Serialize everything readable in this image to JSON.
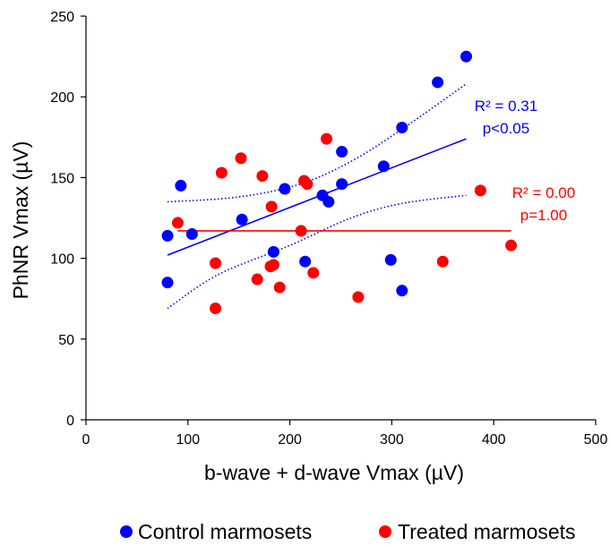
{
  "chart_data": {
    "type": "scatter",
    "xlabel": "b-wave + d-wave Vmax (µV)",
    "ylabel": "PhNR Vmax (µV)",
    "xlim": [
      0,
      500
    ],
    "ylim": [
      0,
      250
    ],
    "x_ticks": [
      "0",
      "100",
      "200",
      "300",
      "400",
      "500"
    ],
    "y_ticks": [
      "0",
      "50",
      "100",
      "150",
      "200",
      "250"
    ],
    "grid": false,
    "legend_position": "bottom",
    "series": [
      {
        "name": "Control marmosets",
        "color": "#0000ff",
        "points": [
          [
            80,
            114
          ],
          [
            80,
            85
          ],
          [
            93,
            145
          ],
          [
            104,
            115
          ],
          [
            153,
            124
          ],
          [
            184,
            104
          ],
          [
            195,
            143
          ],
          [
            215,
            98
          ],
          [
            232,
            139
          ],
          [
            238,
            135
          ],
          [
            251,
            166
          ],
          [
            251,
            146
          ],
          [
            292,
            157
          ],
          [
            299,
            99
          ],
          [
            310,
            181
          ],
          [
            310,
            80
          ],
          [
            345,
            209
          ],
          [
            373,
            225
          ]
        ],
        "fit": {
          "x_start": 80,
          "x_end": 373,
          "y_start": 102,
          "y_end": 174
        },
        "ci_upper": [
          [
            80,
            135
          ],
          [
            150,
            138
          ],
          [
            210,
            146
          ],
          [
            260,
            160
          ],
          [
            310,
            180
          ],
          [
            373,
            208
          ]
        ],
        "ci_lower": [
          [
            80,
            69
          ],
          [
            130,
            90
          ],
          [
            200,
            108
          ],
          [
            260,
            125
          ],
          [
            310,
            134
          ],
          [
            373,
            139
          ]
        ],
        "stats": [
          "R² = 0.31",
          "p<0.05"
        ]
      },
      {
        "name": "Treated marmosets",
        "color": "#ff0000",
        "points": [
          [
            90,
            122
          ],
          [
            127,
            97
          ],
          [
            127,
            69
          ],
          [
            133,
            153
          ],
          [
            152,
            162
          ],
          [
            168,
            87
          ],
          [
            173,
            151
          ],
          [
            181,
            95
          ],
          [
            182,
            132
          ],
          [
            184,
            96
          ],
          [
            190,
            82
          ],
          [
            211,
            117
          ],
          [
            214,
            148
          ],
          [
            217,
            146
          ],
          [
            223,
            91
          ],
          [
            236,
            174
          ],
          [
            267,
            76
          ],
          [
            350,
            98
          ],
          [
            387,
            142
          ],
          [
            417,
            108
          ]
        ],
        "fit": {
          "x_start": 90,
          "x_end": 417,
          "y_start": 117,
          "y_end": 117
        },
        "stats": [
          "R² = 0.00",
          "p=1.00"
        ]
      }
    ]
  }
}
